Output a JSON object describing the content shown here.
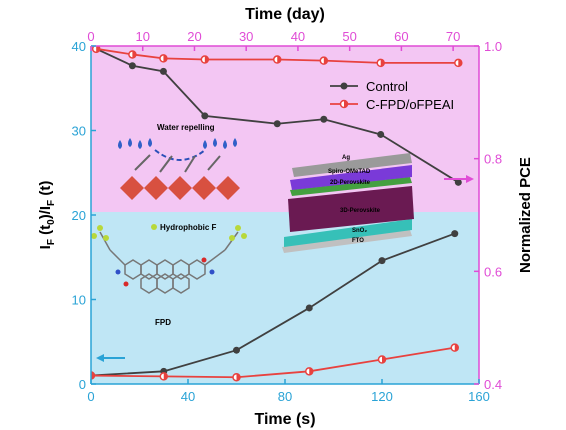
{
  "chart_data": [
    {
      "type": "line",
      "title": "",
      "xlabel": "Time (s)",
      "ylabel": "IF (t0)/IF (t)",
      "xlim": [
        0,
        160
      ],
      "ylim": [
        0,
        40
      ],
      "x_ticks": [
        0,
        40,
        80,
        120,
        160
      ],
      "y_ticks": [
        0,
        10,
        20,
        30,
        40
      ],
      "series": [
        {
          "name": "Control",
          "color": "#404040",
          "marker": "circle",
          "points": [
            [
              0,
              1.0
            ],
            [
              30,
              1.5
            ],
            [
              60,
              4.0
            ],
            [
              90,
              9.0
            ],
            [
              120,
              14.6
            ],
            [
              150,
              17.8
            ]
          ]
        },
        {
          "name": "C-FPD/oFPEAI",
          "color": "#e8423f",
          "marker": "half-circle",
          "points": [
            [
              0,
              1.0
            ],
            [
              30,
              0.9
            ],
            [
              60,
              0.8
            ],
            [
              90,
              1.5
            ],
            [
              120,
              2.9
            ],
            [
              150,
              4.3
            ]
          ]
        }
      ],
      "axis_color": "#2aa3d6",
      "background_color": "#bfe6f5",
      "arrow": "left"
    },
    {
      "type": "line",
      "title": "",
      "xlabel": "Time (day)",
      "ylabel": "Normalized PCE",
      "xlim": [
        0,
        75
      ],
      "ylim": [
        0.4,
        1.0
      ],
      "x_ticks": [
        0,
        10,
        20,
        30,
        40,
        50,
        60,
        70
      ],
      "y_ticks": [
        0.4,
        0.6,
        0.8,
        1.0
      ],
      "series": [
        {
          "name": "Control",
          "color": "#404040",
          "marker": "circle",
          "points": [
            [
              1,
              0.995
            ],
            [
              8,
              0.965
            ],
            [
              14,
              0.955
            ],
            [
              22,
              0.876
            ],
            [
              36,
              0.862
            ],
            [
              45,
              0.87
            ],
            [
              56,
              0.843
            ],
            [
              71,
              0.758
            ]
          ]
        },
        {
          "name": "C-FPD/oFPEAI",
          "color": "#e8423f",
          "marker": "half-circle",
          "points": [
            [
              1,
              0.995
            ],
            [
              8,
              0.985
            ],
            [
              14,
              0.978
            ],
            [
              22,
              0.976
            ],
            [
              36,
              0.976
            ],
            [
              45,
              0.974
            ],
            [
              56,
              0.97
            ],
            [
              71,
              0.97
            ]
          ]
        }
      ],
      "axis_color": "#e04cd6",
      "background_color": "#f3c6f3",
      "arrow": "right"
    }
  ],
  "legend": {
    "position": "top-right",
    "items": [
      "Control",
      "C-FPD/oFPEAI"
    ]
  },
  "insets": {
    "water_repelling": "Water repelling",
    "hydrophobic_f": "Hydrophobic F",
    "fpd": "FPD",
    "layers": [
      "Ag",
      "Spiro-OMeTAD",
      "2D-Perovskite",
      "3D-Perovskite",
      "SnO₂",
      "FTO"
    ]
  }
}
